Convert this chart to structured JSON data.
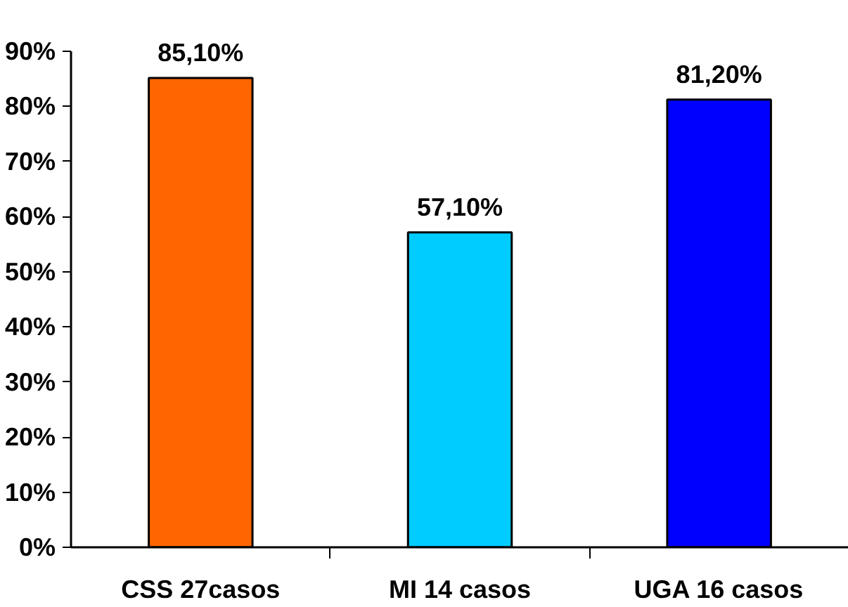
{
  "chart_data": {
    "type": "bar",
    "categories": [
      "CSS 27casos",
      "MI 14 casos",
      "UGA 16 casos"
    ],
    "values": [
      85.1,
      57.1,
      81.2
    ],
    "colors": [
      "#ff6600",
      "#00ccff",
      "#0000ff"
    ],
    "value_labels": [
      "85,10%",
      "57,10%",
      "81,20%"
    ],
    "ylim": [
      0,
      90
    ],
    "yticks": [
      {
        "value": 0,
        "label": "0%"
      },
      {
        "value": 10,
        "label": "10%"
      },
      {
        "value": 20,
        "label": "20%"
      },
      {
        "value": 30,
        "label": "30%"
      },
      {
        "value": 40,
        "label": "40%"
      },
      {
        "value": 50,
        "label": "50%"
      },
      {
        "value": 60,
        "label": "60%"
      },
      {
        "value": 70,
        "label": "70%"
      },
      {
        "value": 80,
        "label": "80%"
      },
      {
        "value": 90,
        "label": "90%"
      }
    ],
    "grid": false
  }
}
